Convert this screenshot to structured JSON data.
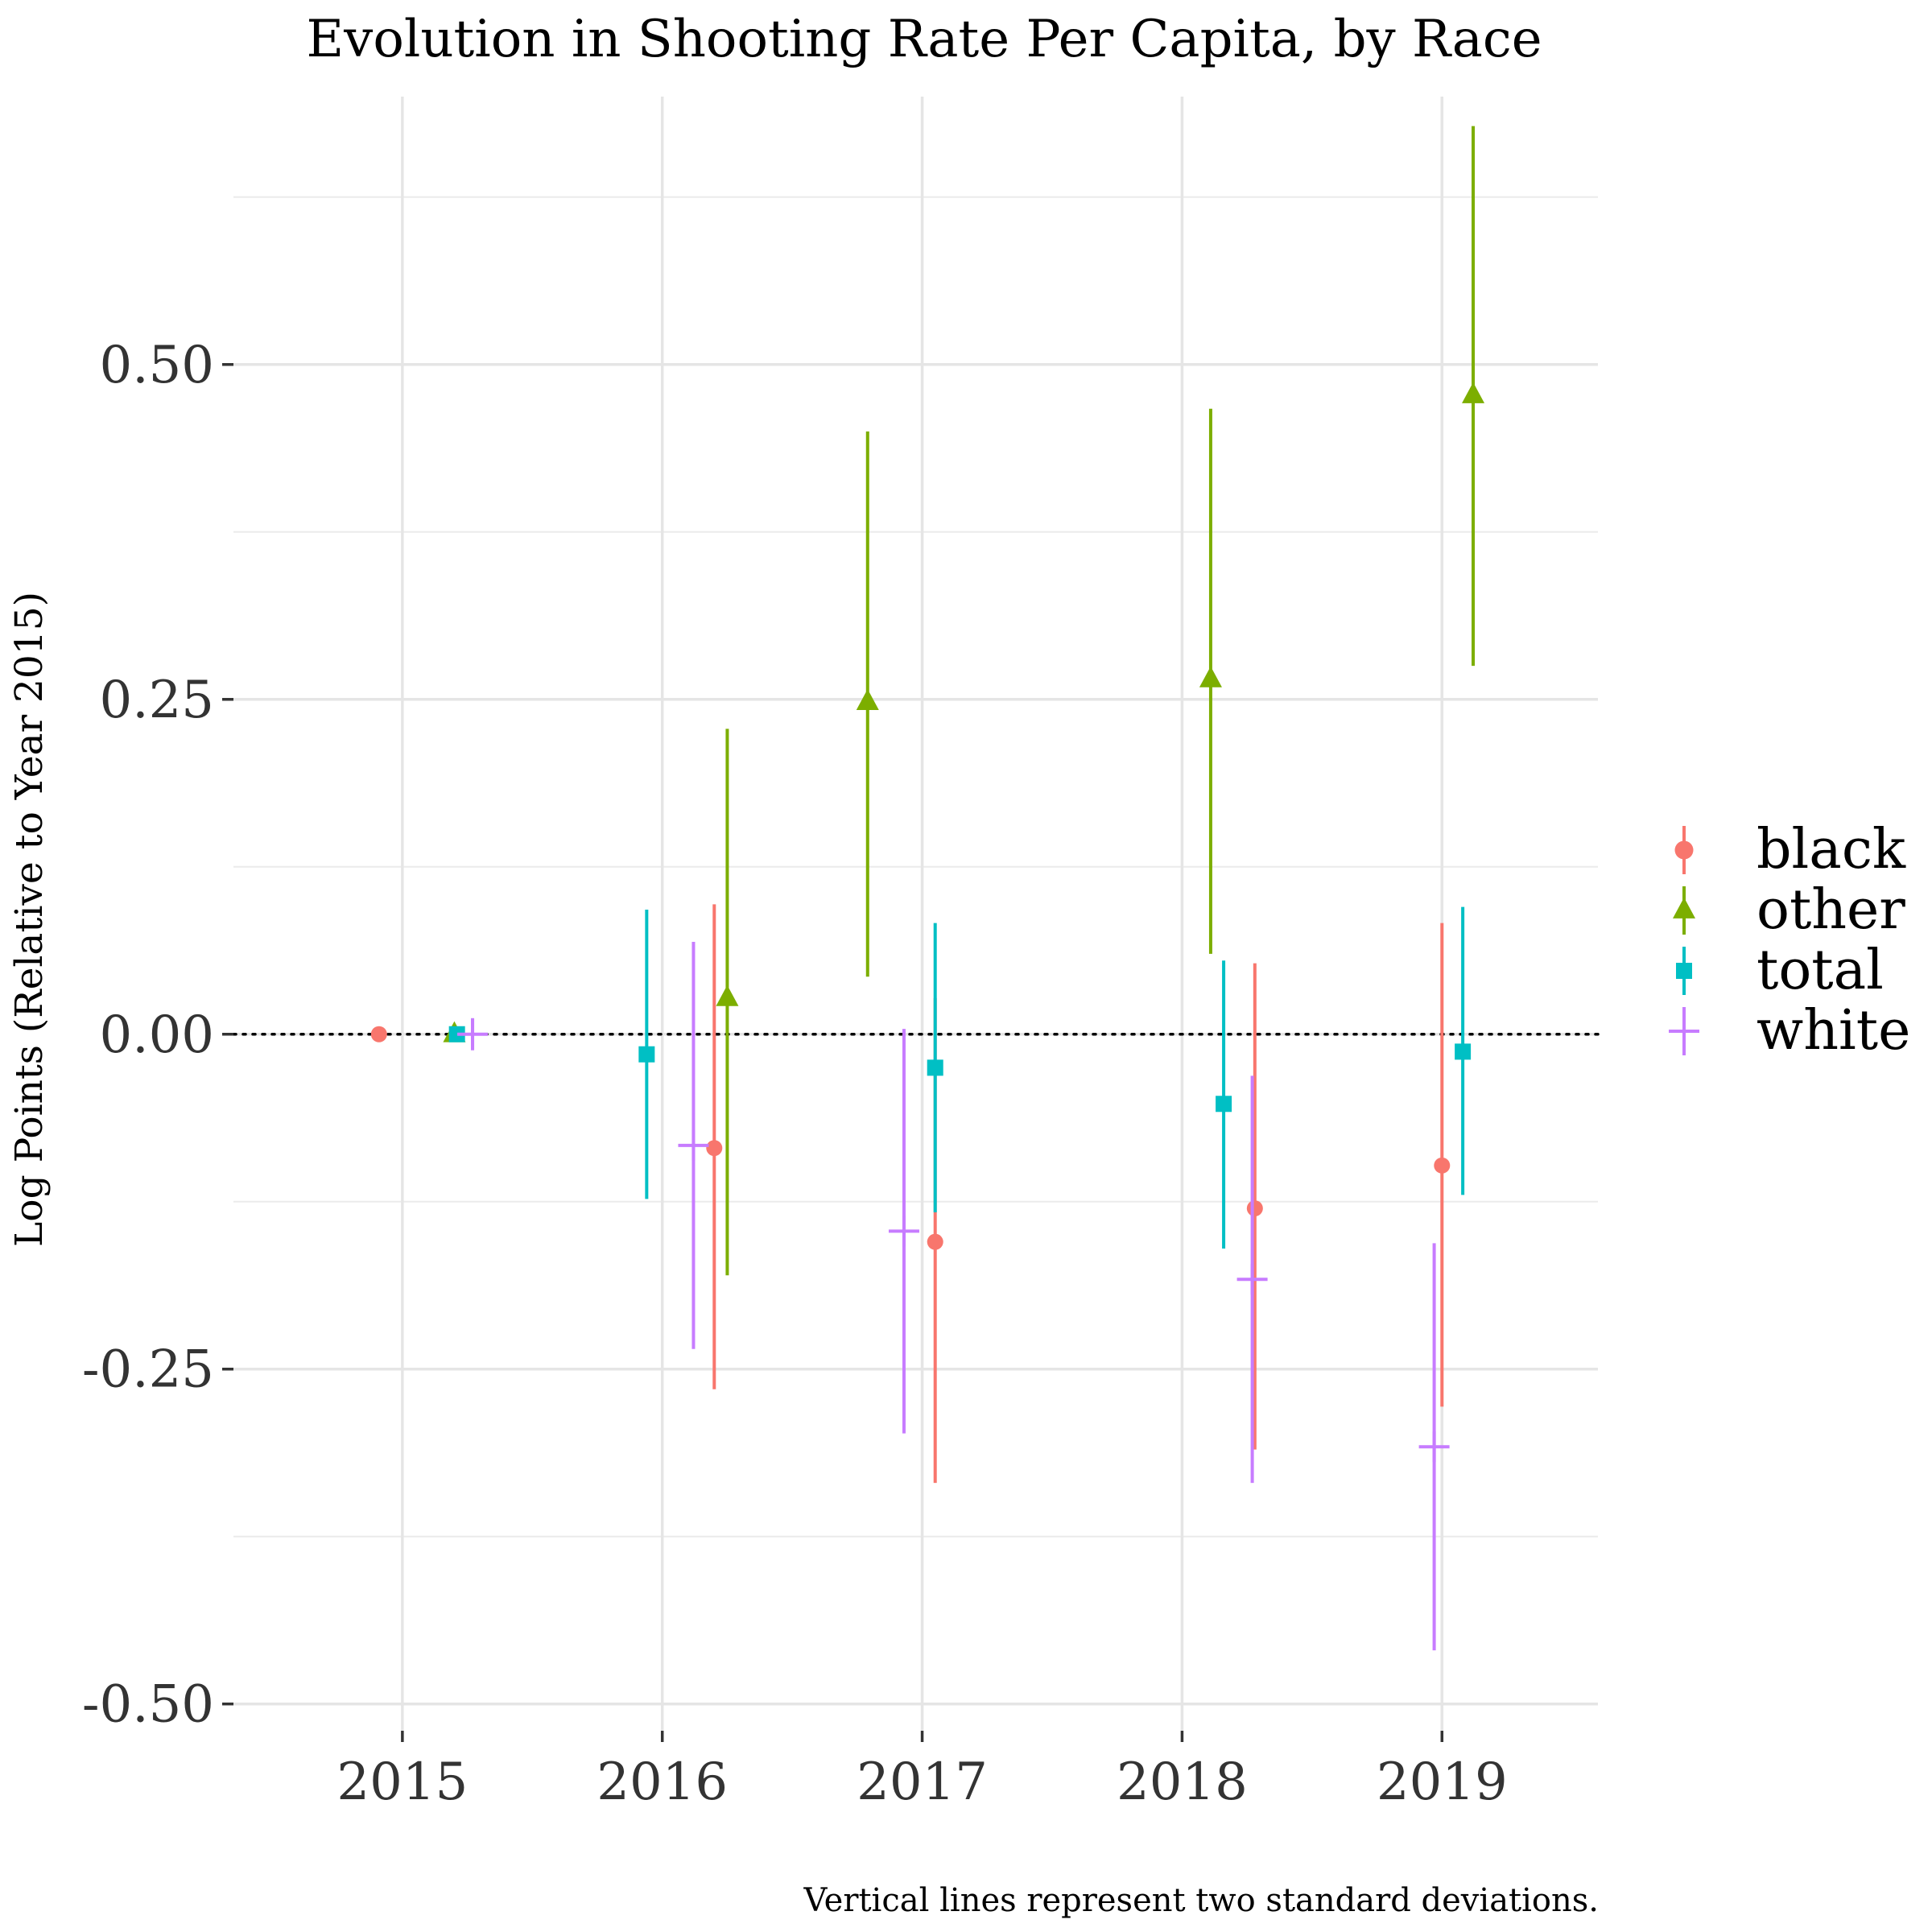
{
  "chart_data": {
    "type": "scatter",
    "title": "Evolution in Shooting Rate Per Capita, by Race",
    "ylabel": "Log Points (Relative to Year 2015)",
    "xlabel": "",
    "caption": "Vertical lines represent two standard deviations.",
    "x_ticks": [
      "2015",
      "2016",
      "2017",
      "2018",
      "2019"
    ],
    "y_ticks": [
      "-0.50",
      "-0.25",
      "0.00",
      "0.25",
      "0.50"
    ],
    "y_tick_values": [
      -0.5,
      -0.25,
      0,
      0.25,
      0.5
    ],
    "ylim": [
      -0.52,
      0.7
    ],
    "xlim": [
      2014.35,
      2019.6
    ],
    "grid": true,
    "reference_line": {
      "y": 0,
      "style": "dotted"
    },
    "legend_position": "right",
    "series": [
      {
        "name": "black",
        "color": "#F8766D",
        "marker": "circle",
        "points": [
          {
            "x": 2014.91,
            "y": 0.0,
            "lo": 0.0,
            "hi": 0.0
          },
          {
            "x": 2016.2,
            "y": -0.085,
            "lo": -0.265,
            "hi": 0.097
          },
          {
            "x": 2017.05,
            "y": -0.155,
            "lo": -0.335,
            "hi": 0.027
          },
          {
            "x": 2018.28,
            "y": -0.13,
            "lo": -0.31,
            "hi": 0.053
          },
          {
            "x": 2019.0,
            "y": -0.098,
            "lo": -0.278,
            "hi": 0.083
          }
        ]
      },
      {
        "name": "other",
        "color": "#7CAE00",
        "marker": "triangle",
        "points": [
          {
            "x": 2015.2,
            "y": 0.0,
            "lo": 0.0,
            "hi": 0.0
          },
          {
            "x": 2016.25,
            "y": 0.027,
            "lo": -0.18,
            "hi": 0.228
          },
          {
            "x": 2016.79,
            "y": 0.248,
            "lo": 0.043,
            "hi": 0.45
          },
          {
            "x": 2018.11,
            "y": 0.265,
            "lo": 0.06,
            "hi": 0.467
          },
          {
            "x": 2019.12,
            "y": 0.477,
            "lo": 0.275,
            "hi": 0.678
          }
        ]
      },
      {
        "name": "total",
        "color": "#00BFC4",
        "marker": "square",
        "points": [
          {
            "x": 2015.21,
            "y": 0.0,
            "lo": 0.0,
            "hi": 0.0
          },
          {
            "x": 2015.94,
            "y": -0.015,
            "lo": -0.123,
            "hi": 0.093
          },
          {
            "x": 2017.05,
            "y": -0.025,
            "lo": -0.133,
            "hi": 0.083
          },
          {
            "x": 2018.16,
            "y": -0.052,
            "lo": -0.16,
            "hi": 0.055
          },
          {
            "x": 2019.08,
            "y": -0.013,
            "lo": -0.12,
            "hi": 0.095
          }
        ]
      },
      {
        "name": "white",
        "color": "#C77CFF",
        "marker": "plus",
        "points": [
          {
            "x": 2015.27,
            "y": 0.0,
            "lo": -0.012,
            "hi": 0.012
          },
          {
            "x": 2016.12,
            "y": -0.083,
            "lo": -0.235,
            "hi": 0.069
          },
          {
            "x": 2016.93,
            "y": -0.147,
            "lo": -0.298,
            "hi": 0.004
          },
          {
            "x": 2018.27,
            "y": -0.183,
            "lo": -0.335,
            "hi": -0.031
          },
          {
            "x": 2018.97,
            "y": -0.308,
            "lo": -0.46,
            "hi": -0.156
          }
        ]
      }
    ]
  }
}
